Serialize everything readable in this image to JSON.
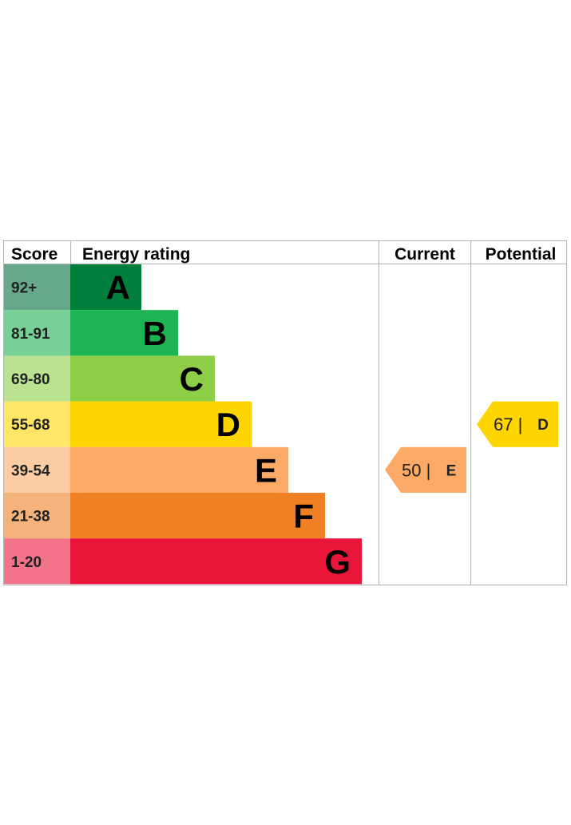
{
  "headers": {
    "score": "Score",
    "energy_rating": "Energy rating",
    "current": "Current",
    "potential": "Potential"
  },
  "chart_data": {
    "type": "bar",
    "title": "",
    "bands": [
      {
        "score": "92+",
        "letter": "A",
        "color": "#007f3d",
        "tint": "#66a98a"
      },
      {
        "score": "81-91",
        "letter": "B",
        "color": "#1db554",
        "tint": "#77d098"
      },
      {
        "score": "69-80",
        "letter": "C",
        "color": "#8dce46",
        "tint": "#bbe290"
      },
      {
        "score": "55-68",
        "letter": "D",
        "color": "#ffd500",
        "tint": "#ffe666"
      },
      {
        "score": "39-54",
        "letter": "E",
        "color": "#fcaa65",
        "tint": "#fdcca3"
      },
      {
        "score": "21-38",
        "letter": "F",
        "color": "#ef8023",
        "tint": "#f5b37b"
      },
      {
        "score": "1-20",
        "letter": "G",
        "color": "#e9153b",
        "tint": "#f2738a"
      }
    ],
    "current": {
      "value": 50,
      "letter": "E",
      "label": "50 |",
      "color": "#fcaa65"
    },
    "potential": {
      "value": 67,
      "letter": "D",
      "label": "67 |",
      "color": "#ffd500"
    }
  }
}
